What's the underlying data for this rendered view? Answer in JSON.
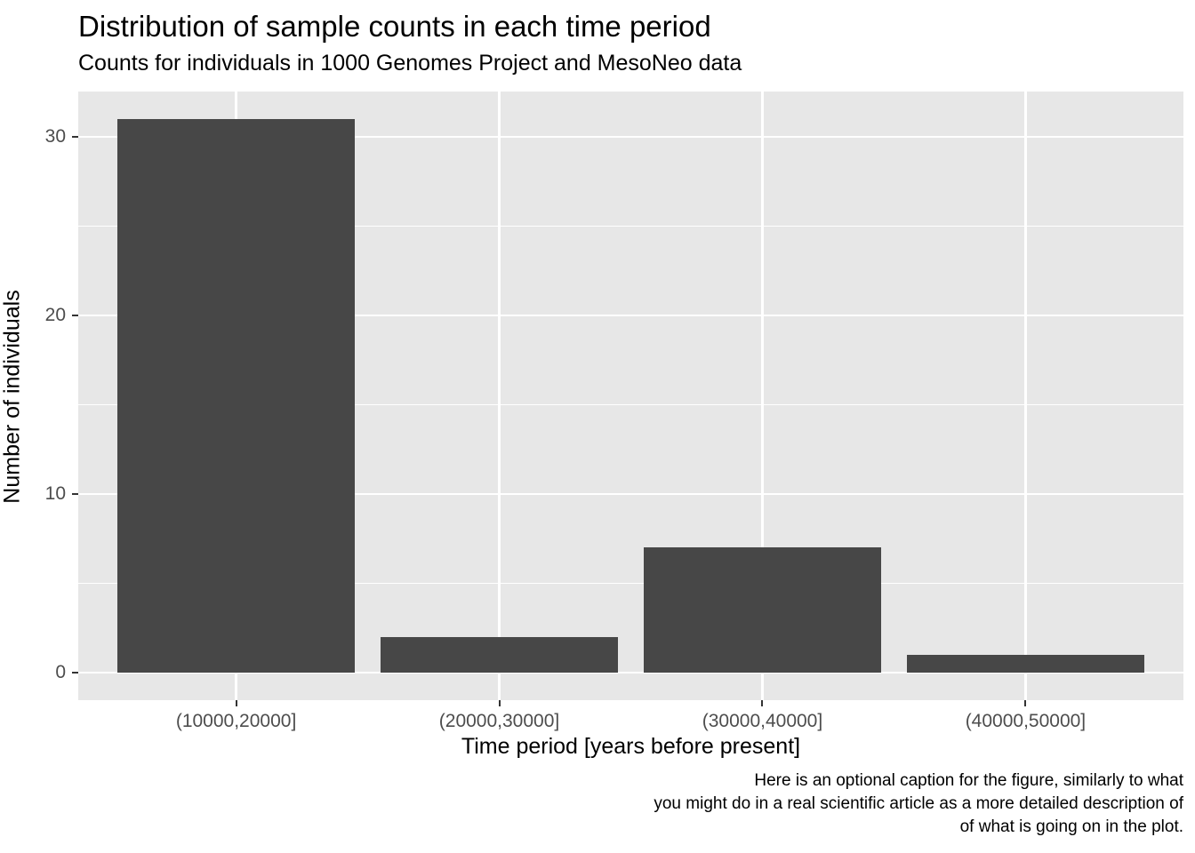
{
  "chart_data": {
    "type": "bar",
    "title": "Distribution of sample counts in each time period",
    "subtitle": "Counts for individuals in 1000 Genomes Project and MesoNeo data",
    "xlabel": "Time period [years before present]",
    "ylabel": "Number of individuals",
    "categories": [
      "(10000,20000]",
      "(20000,30000]",
      "(30000,40000]",
      "(40000,50000]"
    ],
    "values": [
      31,
      2,
      7,
      1
    ],
    "y_major_ticks": [
      0,
      10,
      20,
      30
    ],
    "y_minor_ticks": [
      5,
      15,
      25
    ],
    "ylim": [
      -1.55,
      32.55
    ],
    "bar_width_fraction": 0.9,
    "outer_padding_units": 0.6,
    "grid": "major-and-minor-white",
    "legend": "none",
    "caption_lines": [
      "Here is an optional caption for the figure, similarly to what",
      "you might do in a real scientific article as a more detailed description of",
      "of what is going on in the plot."
    ],
    "colors": {
      "bar": "#474747",
      "panel_background": "#E7E7E7",
      "gridline": "#FFFFFF",
      "tick_text": "#4D4D4D",
      "tick_mark": "#333333",
      "title_text": "#000000",
      "figure_background": "#FFFFFF"
    }
  }
}
